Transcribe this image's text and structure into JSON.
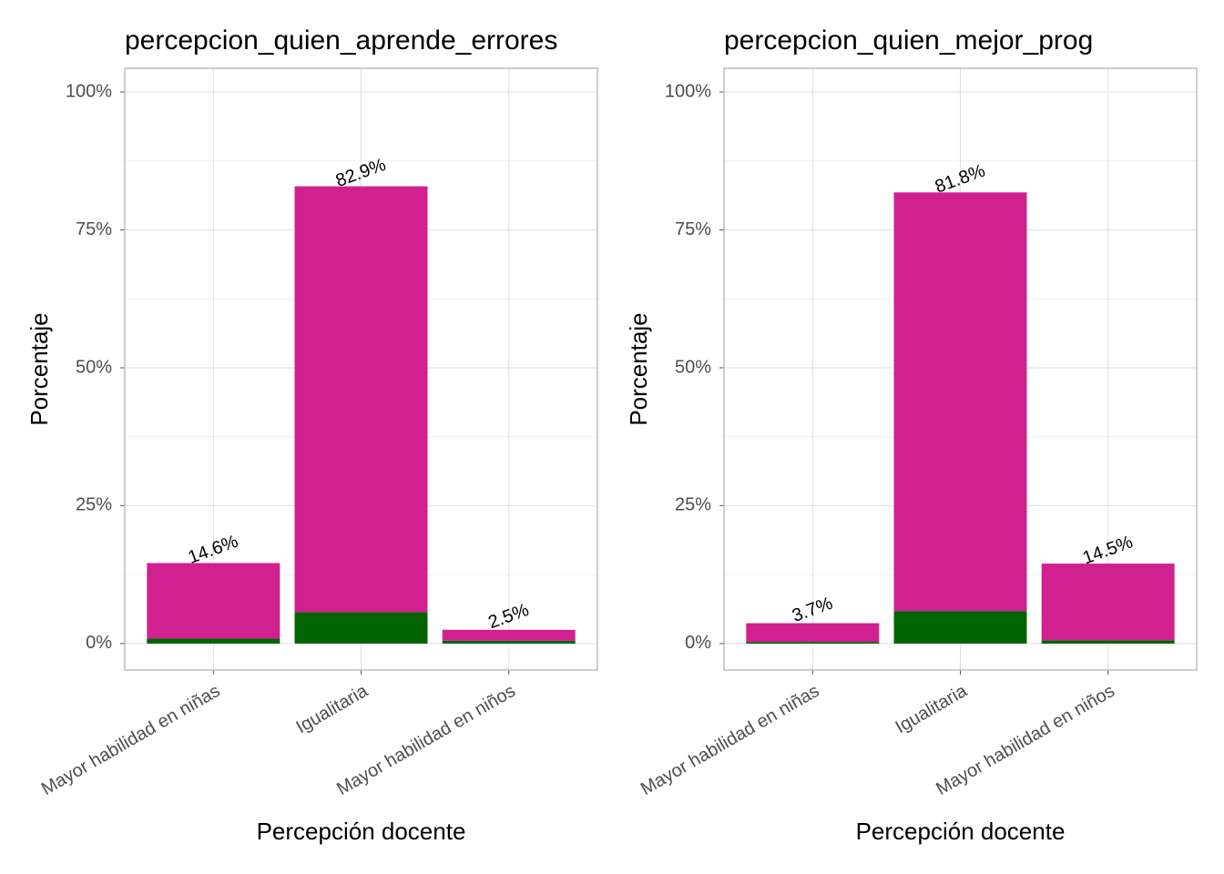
{
  "chart_data": [
    {
      "type": "stacked_bar",
      "title": "percepcion_quien_aprende_errores",
      "x_label": "Percepción docente",
      "y_label": "Porcentaje",
      "categories": [
        "Mayor habilidad en niñas",
        "Igualitaria",
        "Mayor habilidad en niños"
      ],
      "series": [
        {
          "color": "#006400",
          "values": [
            0.9,
            5.7,
            0.5
          ]
        },
        {
          "color": "#d1208f",
          "values": [
            13.7,
            77.2,
            2.0
          ]
        }
      ],
      "totals": [
        14.6,
        82.9,
        2.5
      ],
      "total_labels": [
        "14.6%",
        "82.9%",
        "2.5%"
      ],
      "ylim": [
        -4.8,
        104.3
      ],
      "yticks": [
        {
          "value": 0,
          "label": "0%"
        },
        {
          "value": 25,
          "label": "25%"
        },
        {
          "value": 50,
          "label": "50%"
        },
        {
          "value": 75,
          "label": "75%"
        },
        {
          "value": 100,
          "label": "100%"
        }
      ],
      "grid": true
    },
    {
      "type": "stacked_bar",
      "title": "percepcion_quien_mejor_prog",
      "x_label": "Percepción docente",
      "y_label": "Porcentaje",
      "categories": [
        "Mayor habilidad en niñas",
        "Igualitaria",
        "Mayor habilidad en niños"
      ],
      "series": [
        {
          "color": "#006400",
          "values": [
            0.3,
            5.9,
            0.6
          ]
        },
        {
          "color": "#d1208f",
          "values": [
            3.4,
            75.9,
            13.9
          ]
        }
      ],
      "totals": [
        3.7,
        81.8,
        14.5
      ],
      "total_labels": [
        "3.7%",
        "81.8%",
        "14.5%"
      ],
      "ylim": [
        -4.8,
        104.3
      ],
      "yticks": [
        {
          "value": 0,
          "label": "0%"
        },
        {
          "value": 25,
          "label": "25%"
        },
        {
          "value": 50,
          "label": "50%"
        },
        {
          "value": 75,
          "label": "75%"
        },
        {
          "value": 100,
          "label": "100%"
        }
      ],
      "grid": true
    }
  ]
}
